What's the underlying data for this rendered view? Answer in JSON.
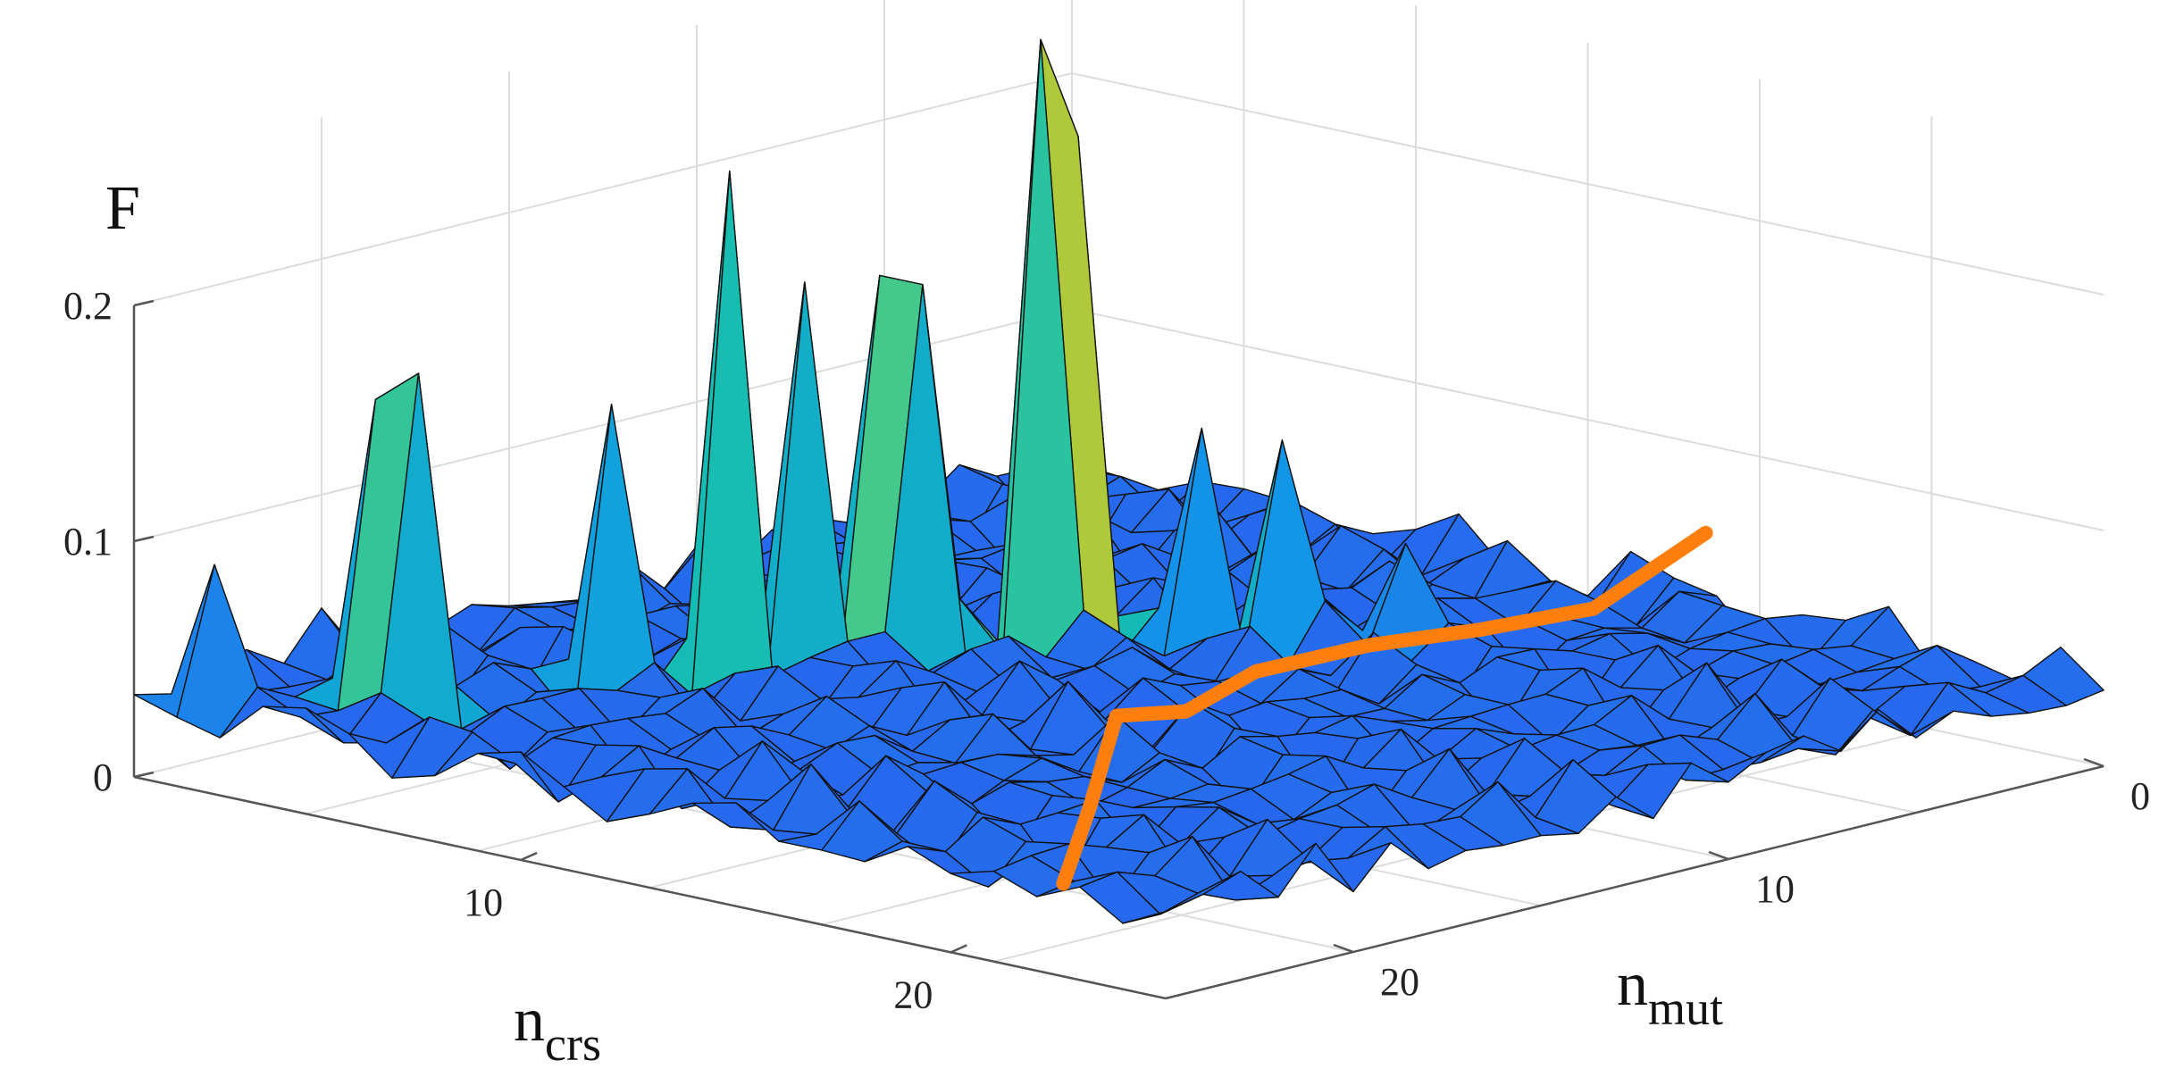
{
  "chart_data": {
    "type": "surface3d",
    "zlabel": "F",
    "xlabel": {
      "main": "n",
      "sub": "crs"
    },
    "ylabel": {
      "main": "n",
      "sub": "mut"
    },
    "x_range": [
      1,
      25
    ],
    "y_range": [
      0,
      25
    ],
    "z_range": [
      0,
      0.2
    ],
    "z_ticks": [
      {
        "value": 0,
        "label": "0"
      },
      {
        "value": 0.1,
        "label": "0.1"
      },
      {
        "value": 0.2,
        "label": "0.2"
      }
    ],
    "x_ticks": [
      {
        "value": 10,
        "label": "10"
      },
      {
        "value": 20,
        "label": "20"
      }
    ],
    "y_ticks": [
      {
        "value": 0,
        "label": "0"
      },
      {
        "value": 10,
        "label": "10"
      },
      {
        "value": 20,
        "label": "20"
      }
    ],
    "grid": true,
    "colormap": [
      "#3e26a8",
      "#2c5df0",
      "#109ae6",
      "#14bdb1",
      "#48cb86",
      "#a0c940",
      "#e6c828",
      "#f8fa0d"
    ],
    "peaks": [
      {
        "x": 2,
        "y": 24,
        "z": 0.09
      },
      {
        "x": 4,
        "y": 22,
        "z": 0.16
      },
      {
        "x": 5,
        "y": 22,
        "z": 0.175
      },
      {
        "x": 6,
        "y": 18,
        "z": 0.15
      },
      {
        "x": 7,
        "y": 16,
        "z": 0.245
      },
      {
        "x": 7,
        "y": 14,
        "z": 0.19
      },
      {
        "x": 7,
        "y": 12,
        "z": 0.185
      },
      {
        "x": 8,
        "y": 12,
        "z": 0.185
      },
      {
        "x": 9,
        "y": 10,
        "z": 0.285
      },
      {
        "x": 9,
        "y": 9,
        "z": 0.24
      },
      {
        "x": 11,
        "y": 8,
        "z": 0.12
      },
      {
        "x": 12,
        "y": 7,
        "z": 0.115
      },
      {
        "x": 14,
        "y": 6,
        "z": 0.075
      }
    ],
    "baseline_level": 0.035,
    "optimum_curve": {
      "color": "#ff7f0e",
      "points": [
        [
          20,
          22
        ],
        [
          18,
          19
        ],
        [
          16,
          16
        ],
        [
          15,
          13
        ],
        [
          14,
          10
        ],
        [
          14,
          7
        ],
        [
          14,
          4
        ],
        [
          14,
          1
        ],
        [
          14,
          -2
        ]
      ]
    }
  }
}
